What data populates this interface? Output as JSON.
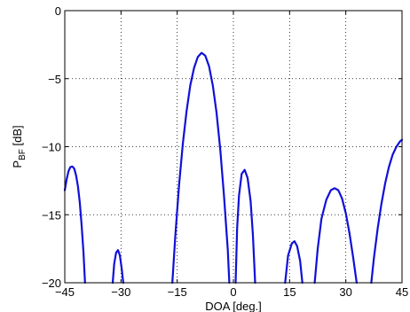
{
  "chart_data": {
    "type": "line",
    "title": "",
    "xlabel": "DOA [deg.]",
    "ylabel_main": "P",
    "ylabel_sub": "BF",
    "ylabel_unit": " [dB]",
    "xlim": [
      -45,
      45
    ],
    "ylim": [
      -20,
      0
    ],
    "xticks": [
      -45,
      -30,
      -15,
      0,
      15,
      30,
      45
    ],
    "yticks": [
      0,
      -5,
      -10,
      -15,
      -20
    ],
    "xtick_labels": [
      "−45",
      "−30",
      "−15",
      "0",
      "15",
      "30",
      "45"
    ],
    "ytick_labels": [
      "0",
      "−5",
      "−10",
      "−15",
      "−20"
    ],
    "grid": true,
    "color": "#1010d8",
    "series": [
      {
        "segments": [
          [
            [
              -45,
              -13.2
            ],
            [
              -44.5,
              -12.4
            ],
            [
              -44,
              -11.8
            ],
            [
              -43.5,
              -11.5
            ],
            [
              -43,
              -11.45
            ],
            [
              -42.5,
              -11.6
            ],
            [
              -42,
              -12.1
            ],
            [
              -41.5,
              -12.9
            ],
            [
              -41,
              -14.1
            ],
            [
              -40.5,
              -15.8
            ],
            [
              -40,
              -17.8
            ],
            [
              -39.6,
              -20
            ]
          ],
          [
            [
              -32.2,
              -20
            ],
            [
              -31.8,
              -18.6
            ],
            [
              -31.3,
              -17.8
            ],
            [
              -30.8,
              -17.6
            ],
            [
              -30.3,
              -18.0
            ],
            [
              -29.8,
              -19.0
            ],
            [
              -29.4,
              -20
            ]
          ],
          [
            [
              -16.3,
              -20
            ],
            [
              -15.5,
              -16.5
            ],
            [
              -14.5,
              -12.8
            ],
            [
              -13.5,
              -9.8
            ],
            [
              -12.5,
              -7.4
            ],
            [
              -11.5,
              -5.5
            ],
            [
              -10.5,
              -4.2
            ],
            [
              -9.5,
              -3.4
            ],
            [
              -8.5,
              -3.1
            ],
            [
              -7.5,
              -3.3
            ],
            [
              -6.5,
              -4.1
            ],
            [
              -5.5,
              -5.5
            ],
            [
              -4.5,
              -7.5
            ],
            [
              -3.5,
              -10.2
            ],
            [
              -2.5,
              -13.6
            ],
            [
              -1.5,
              -17.6
            ],
            [
              -1.1,
              -20
            ]
          ],
          [
            [
              0.6,
              -20
            ],
            [
              1.0,
              -16.0
            ],
            [
              1.5,
              -13.6
            ],
            [
              2.2,
              -12.0
            ],
            [
              3.0,
              -11.7
            ],
            [
              3.8,
              -12.3
            ],
            [
              4.6,
              -14.0
            ],
            [
              5.2,
              -16.5
            ],
            [
              5.8,
              -20
            ]
          ],
          [
            [
              13.8,
              -20
            ],
            [
              14.6,
              -18.0
            ],
            [
              15.6,
              -17.1
            ],
            [
              16.3,
              -16.95
            ],
            [
              17.0,
              -17.3
            ],
            [
              17.8,
              -18.4
            ],
            [
              18.4,
              -20
            ]
          ],
          [
            [
              21.7,
              -20
            ],
            [
              22.5,
              -17.5
            ],
            [
              23.5,
              -15.3
            ],
            [
              24.8,
              -13.9
            ],
            [
              26.0,
              -13.2
            ],
            [
              27.0,
              -13.05
            ],
            [
              28.0,
              -13.2
            ],
            [
              29.0,
              -13.8
            ],
            [
              30.0,
              -14.9
            ],
            [
              31.0,
              -16.4
            ],
            [
              32.0,
              -18.2
            ],
            [
              32.9,
              -20
            ]
          ],
          [
            [
              36.8,
              -20
            ],
            [
              37.5,
              -18.2
            ],
            [
              38.5,
              -16.0
            ],
            [
              39.5,
              -14.2
            ],
            [
              40.5,
              -12.7
            ],
            [
              41.5,
              -11.5
            ],
            [
              42.5,
              -10.6
            ],
            [
              43.5,
              -10.0
            ],
            [
              44.5,
              -9.6
            ],
            [
              45,
              -9.5
            ]
          ]
        ]
      }
    ]
  }
}
